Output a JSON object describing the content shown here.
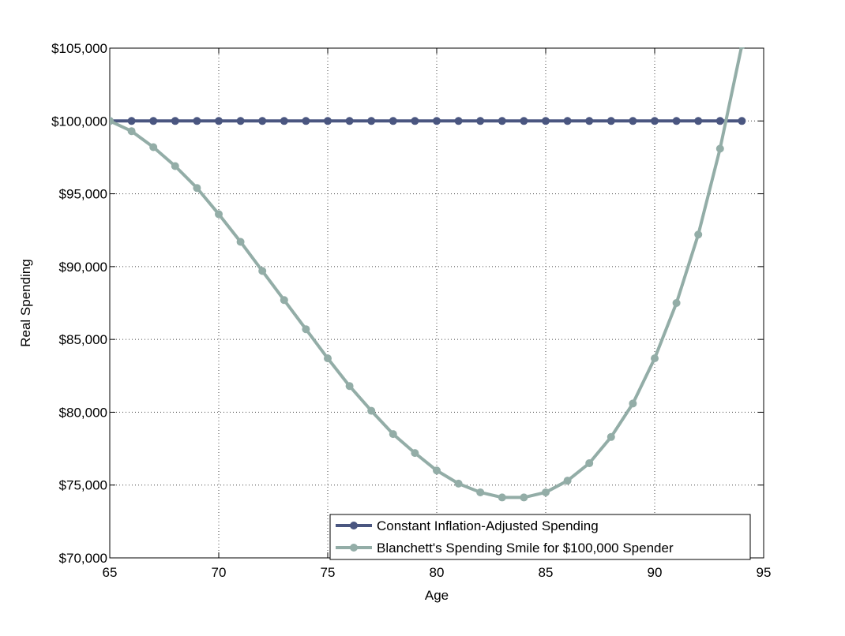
{
  "chart_data": {
    "type": "line",
    "title": "",
    "xlabel": "Age",
    "ylabel": "Real Spending",
    "xlim": [
      65,
      95
    ],
    "ylim": [
      70000,
      105000
    ],
    "x_ticks": [
      65,
      70,
      75,
      80,
      85,
      90,
      95
    ],
    "x_tick_labels": [
      "65",
      "70",
      "75",
      "80",
      "85",
      "90",
      "95"
    ],
    "y_ticks": [
      70000,
      75000,
      80000,
      85000,
      90000,
      95000,
      100000,
      105000
    ],
    "y_tick_labels": [
      "$70,000",
      "$75,000",
      "$80,000",
      "$85,000",
      "$90,000",
      "$95,000",
      "$100,000",
      "$105,000"
    ],
    "grid": true,
    "legend_position": "bottom-right",
    "x": [
      65,
      66,
      67,
      68,
      69,
      70,
      71,
      72,
      73,
      74,
      75,
      76,
      77,
      78,
      79,
      80,
      81,
      82,
      83,
      84,
      85,
      86,
      87,
      88,
      89,
      90,
      91,
      92,
      93,
      94
    ],
    "series": [
      {
        "name": "Constant Inflation-Adjusted Spending",
        "color": "#4a5680",
        "values": [
          100000,
          100000,
          100000,
          100000,
          100000,
          100000,
          100000,
          100000,
          100000,
          100000,
          100000,
          100000,
          100000,
          100000,
          100000,
          100000,
          100000,
          100000,
          100000,
          100000,
          100000,
          100000,
          100000,
          100000,
          100000,
          100000,
          100000,
          100000,
          100000,
          100000
        ]
      },
      {
        "name": "Blanchett's Spending Smile for $100,000 Spender",
        "color": "#93ada7",
        "values": [
          100000,
          99300,
          98200,
          96900,
          95400,
          93600,
          91700,
          89700,
          87700,
          85700,
          83700,
          81800,
          80100,
          78500,
          77200,
          76000,
          75100,
          74500,
          74150,
          74150,
          74500,
          75300,
          76500,
          78300,
          80600,
          83700,
          87500,
          92200,
          98100,
          105200
        ]
      }
    ]
  }
}
